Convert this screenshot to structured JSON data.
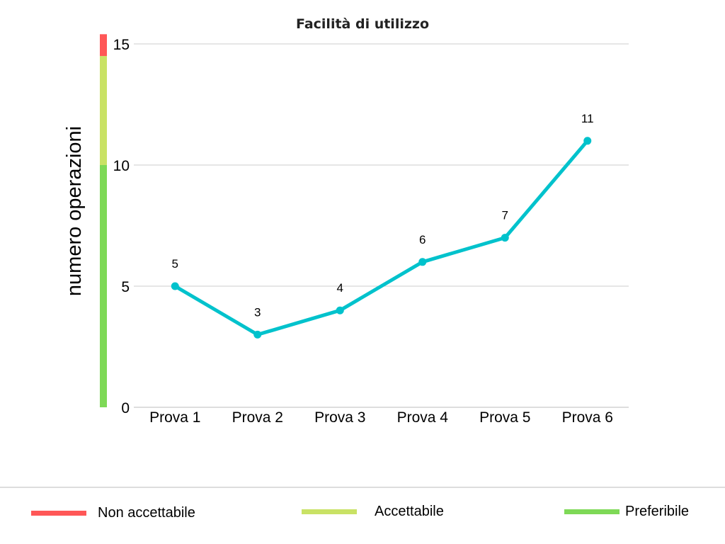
{
  "chart_data": {
    "type": "line",
    "title": "Facilità di utilizzo",
    "ylabel": "numero operazioni",
    "xlabel": "",
    "categories": [
      "Prova 1",
      "Prova 2",
      "Prova 3",
      "Prova 4",
      "Prova 5",
      "Prova 6"
    ],
    "series": [
      {
        "values": [
          5,
          3,
          4,
          6,
          7,
          11
        ],
        "color": "#00c2cc"
      }
    ],
    "ylim": [
      0,
      15
    ],
    "yticks": [
      0,
      5,
      10,
      15
    ],
    "grid": true,
    "data_labels": [
      "5",
      "3",
      "4",
      "6",
      "7",
      "11"
    ],
    "threshold_bar": [
      {
        "label": "Preferibile",
        "from": 0,
        "to": 10,
        "color": "#7ed957"
      },
      {
        "label": "Accettabile",
        "from": 10,
        "to": 14.5,
        "color": "#c9e265"
      },
      {
        "label": "Non accettabile",
        "from": 14.5,
        "to": 15.4,
        "color": "#ff5757"
      }
    ]
  },
  "legend": {
    "items": [
      {
        "label": "Non accettabile",
        "color": "#ff5757"
      },
      {
        "label": "Accettabile",
        "color": "#c9e265"
      },
      {
        "label": "Preferibile",
        "color": "#7ed957"
      }
    ]
  }
}
